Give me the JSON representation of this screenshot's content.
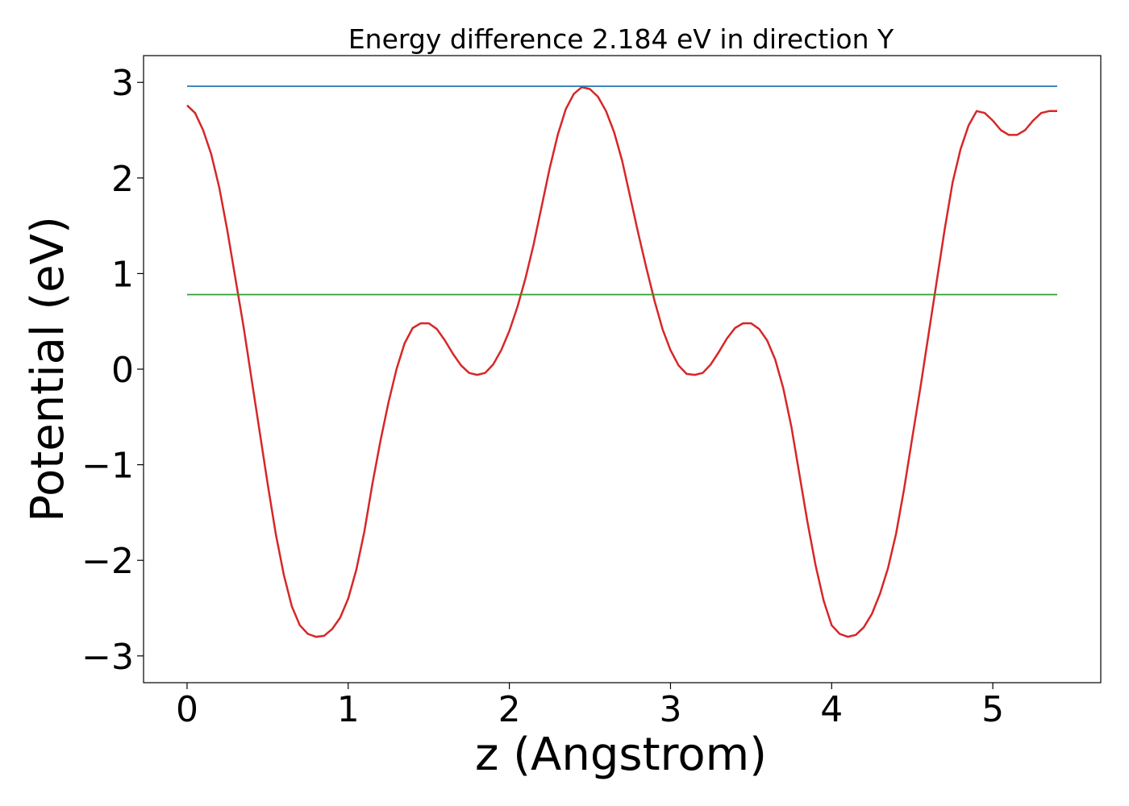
{
  "chart_data": {
    "type": "line",
    "title": "Energy difference 2.184 eV in direction Y",
    "xlabel": "z (Angstrom)",
    "ylabel": "Potential (eV)",
    "xlim": [
      -0.27,
      5.67
    ],
    "ylim": [
      -3.28,
      3.28
    ],
    "xticks": [
      0,
      1,
      2,
      3,
      4,
      5
    ],
    "xtick_labels": [
      "0",
      "1",
      "2",
      "3",
      "4",
      "5"
    ],
    "yticks": [
      -3,
      -2,
      -1,
      0,
      1,
      2,
      3
    ],
    "ytick_labels": [
      "−3",
      "−2",
      "−1",
      "0",
      "1",
      "2",
      "3"
    ],
    "grid": false,
    "series": [
      {
        "color": "#d62728",
        "x": [
          0.0,
          0.05,
          0.1,
          0.15,
          0.2,
          0.25,
          0.3,
          0.35,
          0.4,
          0.45,
          0.5,
          0.55,
          0.6,
          0.65,
          0.7,
          0.75,
          0.8,
          0.85,
          0.9,
          0.95,
          1.0,
          1.05,
          1.1,
          1.15,
          1.2,
          1.25,
          1.3,
          1.35,
          1.4,
          1.45,
          1.5,
          1.55,
          1.6,
          1.65,
          1.7,
          1.75,
          1.8,
          1.85,
          1.9,
          1.95,
          2.0,
          2.05,
          2.1,
          2.15,
          2.2,
          2.25,
          2.3,
          2.35,
          2.4,
          2.45,
          2.5,
          2.55,
          2.6,
          2.65,
          2.7,
          2.75,
          2.8,
          2.85,
          2.9,
          2.95,
          3.0,
          3.05,
          3.1,
          3.15,
          3.2,
          3.25,
          3.3,
          3.35,
          3.4,
          3.45,
          3.5,
          3.55,
          3.6,
          3.65,
          3.7,
          3.75,
          3.8,
          3.85,
          3.9,
          3.95,
          4.0,
          4.05,
          4.1,
          4.15,
          4.2,
          4.25,
          4.3,
          4.35,
          4.4,
          4.45,
          4.5,
          4.55,
          4.6,
          4.65,
          4.7,
          4.75,
          4.8,
          4.85,
          4.9,
          4.95,
          5.0,
          5.05,
          5.1,
          5.15,
          5.2,
          5.25,
          5.3,
          5.35,
          5.4
        ],
        "y": [
          2.76,
          2.68,
          2.5,
          2.25,
          1.9,
          1.45,
          0.95,
          0.45,
          -0.1,
          -0.65,
          -1.2,
          -1.72,
          -2.15,
          -2.48,
          -2.68,
          -2.77,
          -2.8,
          -2.79,
          -2.72,
          -2.6,
          -2.4,
          -2.1,
          -1.7,
          -1.2,
          -0.75,
          -0.35,
          0.0,
          0.27,
          0.43,
          0.48,
          0.48,
          0.42,
          0.3,
          0.16,
          0.04,
          -0.04,
          -0.06,
          -0.04,
          0.05,
          0.2,
          0.4,
          0.65,
          0.95,
          1.3,
          1.7,
          2.1,
          2.45,
          2.72,
          2.88,
          2.95,
          2.93,
          2.85,
          2.7,
          2.48,
          2.18,
          1.8,
          1.42,
          1.06,
          0.72,
          0.42,
          0.2,
          0.04,
          -0.05,
          -0.06,
          -0.04,
          0.05,
          0.18,
          0.32,
          0.43,
          0.48,
          0.48,
          0.42,
          0.3,
          0.1,
          -0.2,
          -0.6,
          -1.1,
          -1.6,
          -2.05,
          -2.42,
          -2.68,
          -2.77,
          -2.8,
          -2.78,
          -2.7,
          -2.56,
          -2.35,
          -2.08,
          -1.72,
          -1.25,
          -0.72,
          -0.2,
          0.35,
          0.9,
          1.45,
          1.95,
          2.3,
          2.55,
          2.7,
          2.68,
          2.6,
          2.5,
          2.45,
          2.45,
          2.5,
          2.6,
          2.68,
          2.7,
          2.7
        ]
      },
      {
        "color": "#1f77b4",
        "x": [
          0.0,
          5.4
        ],
        "y": [
          2.96,
          2.96
        ]
      },
      {
        "color": "#2ca02c",
        "x": [
          0.0,
          5.4
        ],
        "y": [
          0.78,
          0.78
        ]
      }
    ]
  }
}
